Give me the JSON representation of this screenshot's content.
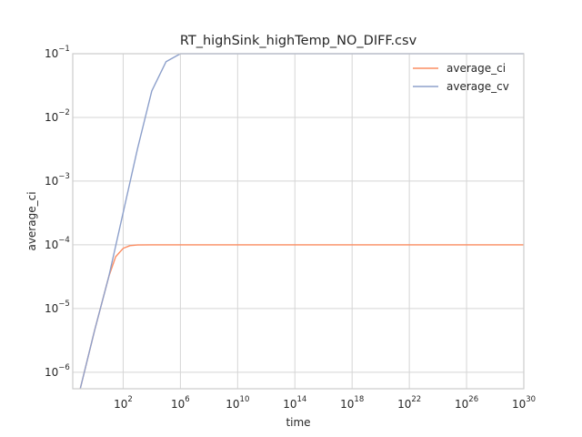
{
  "chart_data": {
    "type": "line",
    "title": "RT_highSink_highTemp_NO_DIFF.csv",
    "xlabel": "time",
    "ylabel": "average_ci",
    "xscale": "log",
    "yscale": "log",
    "xlim": [
      0.03,
      1e+30
    ],
    "ylim": [
      5.5e-07,
      0.1
    ],
    "grid": true,
    "legend_position": "top-right",
    "x_ticks": [
      {
        "base": "10",
        "exp": "2",
        "value": 100.0
      },
      {
        "base": "10",
        "exp": "6",
        "value": 1000000.0
      },
      {
        "base": "10",
        "exp": "10",
        "value": 10000000000.0
      },
      {
        "base": "10",
        "exp": "14",
        "value": 100000000000000.0
      },
      {
        "base": "10",
        "exp": "18",
        "value": 1e+18
      },
      {
        "base": "10",
        "exp": "22",
        "value": 1e+22
      },
      {
        "base": "10",
        "exp": "26",
        "value": 1e+26
      },
      {
        "base": "10",
        "exp": "30",
        "value": 1e+30
      }
    ],
    "y_ticks": [
      {
        "base": "10",
        "exp": "−6",
        "value": 1e-06
      },
      {
        "base": "10",
        "exp": "−5",
        "value": 1e-05
      },
      {
        "base": "10",
        "exp": "−4",
        "value": 0.0001
      },
      {
        "base": "10",
        "exp": "−3",
        "value": 0.001
      },
      {
        "base": "10",
        "exp": "−2",
        "value": 0.01
      },
      {
        "base": "10",
        "exp": "−1",
        "value": 0.1
      }
    ],
    "series": [
      {
        "name": "average_ci",
        "color": "#fc8d62",
        "points": [
          [
            0.1,
            5.5e-07
          ],
          [
            1,
            4.5e-06
          ],
          [
            10,
            3.2e-05
          ],
          [
            30,
            6.5e-05
          ],
          [
            100,
            8.8e-05
          ],
          [
            300,
            9.7e-05
          ],
          [
            1000,
            9.95e-05
          ],
          [
            10000,
            0.0001
          ],
          [
            1e+30,
            0.0001
          ]
        ]
      },
      {
        "name": "average_cv",
        "color": "#8da0cb",
        "points": [
          [
            0.1,
            5.5e-07
          ],
          [
            1,
            4.5e-06
          ],
          [
            10,
            3.2e-05
          ],
          [
            100,
            0.00032
          ],
          [
            1000,
            0.0032
          ],
          [
            10000,
            0.026
          ],
          [
            100000,
            0.075
          ],
          [
            1000000,
            0.1
          ],
          [
            1e+30,
            0.1
          ]
        ]
      }
    ]
  }
}
